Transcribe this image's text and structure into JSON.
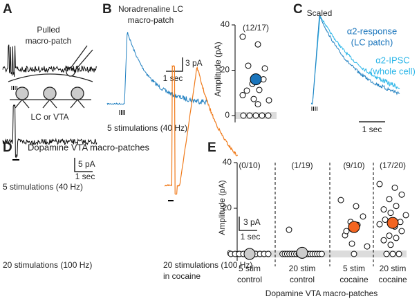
{
  "panels": {
    "A": {
      "letter": "A",
      "title_lines": [
        "Pulled",
        "macro-patch"
      ],
      "label": "LC or VTA"
    },
    "B": {
      "letter": "B",
      "title_lines": [
        "Noradrenaline LC",
        "macro-patch"
      ],
      "scale_y": "3 pA",
      "scale_x": "1 sec",
      "caption": "5 stimulations (40 Hz)"
    },
    "C": {
      "letter": "C",
      "title": "Scaled",
      "legend_lines": [
        "α2-response",
        "(LC patch)",
        "α2-IPSC",
        "(whole cell)"
      ],
      "scale_x": "1 sec"
    },
    "D": {
      "letter": "D",
      "title": "Dopamine VTA macro-patches",
      "caption_top": "5 stimulations (40 Hz)",
      "scale_y_left": "5 pA",
      "scale_x_left": "1 sec",
      "caption_bottom": "20 stimulations (100 Hz)",
      "scale_y_right": "3 pA",
      "scale_x_right": "1 sec",
      "caption_right_lines": [
        "20 stimulations (100 Hz)",
        "in cocaine"
      ]
    },
    "E": {
      "letter": "E"
    }
  },
  "chart_data": [
    {
      "type": "scatter",
      "ylabel": "Amplitude (pA)",
      "annotations": [
        "(12/17)"
      ],
      "values": [
        [
          34.8,
          31.4,
          20.8,
          14,
          11.3,
          11,
          7.3,
          6.7,
          22,
          16,
          9,
          5,
          0,
          0,
          0,
          0,
          0
        ]
      ],
      "means": [
        16
      ],
      "mean_colors": [
        "#1a75bc"
      ],
      "ylim": [
        -3,
        40
      ],
      "yticks": [
        0,
        20,
        40
      ]
    },
    {
      "type": "scatter",
      "ylabel": "Amplitude (pA)",
      "xlabel": "Dopamine VTA macro-patches",
      "categories": [
        "5 stim\ncontrol",
        "20 stim\ncontrol",
        "5 stim\ncocaine",
        "20 stim\ncocaine"
      ],
      "annotations": [
        "(0/10)",
        "(1/19)",
        "(9/10)",
        "(17/20)"
      ],
      "values": [
        [
          0,
          0,
          0,
          0,
          0,
          0,
          0,
          0,
          0,
          0
        ],
        [
          10.6,
          0,
          0,
          0,
          0,
          0,
          0,
          0,
          0,
          0,
          0,
          0,
          0,
          0,
          0,
          0,
          0,
          0,
          0
        ],
        [
          23.6,
          20.9,
          16.4,
          14,
          12.7,
          8.2,
          4.5,
          3.3,
          10,
          0
        ],
        [
          30.6,
          29,
          26,
          24,
          21,
          19.5,
          18,
          17,
          15,
          14,
          13,
          12,
          10,
          8,
          7,
          6,
          4,
          0,
          0,
          0
        ]
      ],
      "means": [
        0,
        0.5,
        11.8,
        13.6
      ],
      "mean_colors": [
        "#cccccc",
        "#cccccc",
        "#f26522",
        "#f26522"
      ],
      "ylim": [
        -3,
        40
      ],
      "yticks": [
        0,
        20,
        40
      ]
    }
  ]
}
